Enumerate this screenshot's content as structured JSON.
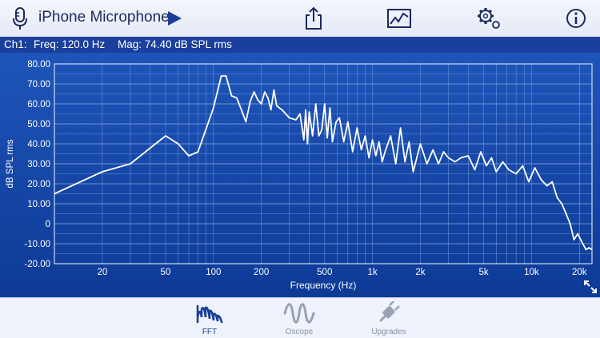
{
  "header": {
    "title": "iPhone Microphone",
    "icons": [
      "microphone-icon",
      "play-icon",
      "share-icon",
      "graph-icon",
      "settings-icon",
      "info-icon"
    ]
  },
  "readout": {
    "channel": "Ch1:",
    "freq": "Freq: 120.0 Hz",
    "mag": "Mag: 74.40 dB SPL rms"
  },
  "tabs": [
    {
      "label": "FFT",
      "active": true
    },
    {
      "label": "Oscope",
      "active": false
    },
    {
      "label": "Upgrades",
      "active": false
    }
  ],
  "colors": {
    "plot_bg": "#1a4db0",
    "grid": "#7fa6e4",
    "trace": "#ffffff",
    "active_tab": "#1b3f99"
  },
  "chart_data": {
    "type": "line",
    "xlabel": "Frequency (Hz)",
    "ylabel": "dB SPL rms",
    "xscale": "log",
    "xlim": [
      10,
      24000
    ],
    "ylim": [
      -20,
      80
    ],
    "yticks": [
      {
        "v": 80,
        "t": "80.00"
      },
      {
        "v": 70,
        "t": "70.00"
      },
      {
        "v": 60,
        "t": "60.00"
      },
      {
        "v": 50,
        "t": "50.00"
      },
      {
        "v": 40,
        "t": "40.00"
      },
      {
        "v": 30,
        "t": "30.00"
      },
      {
        "v": 20,
        "t": "20.00"
      },
      {
        "v": 10,
        "t": "10.00"
      },
      {
        "v": 0,
        "t": "0"
      },
      {
        "v": -10,
        "t": "-10.00"
      },
      {
        "v": -20,
        "t": "-20.00"
      }
    ],
    "xticks": [
      {
        "v": 20,
        "t": "20"
      },
      {
        "v": 50,
        "t": "50"
      },
      {
        "v": 100,
        "t": "100"
      },
      {
        "v": 200,
        "t": "200"
      },
      {
        "v": 500,
        "t": "500"
      },
      {
        "v": 1000,
        "t": "1k"
      },
      {
        "v": 2000,
        "t": "2k"
      },
      {
        "v": 5000,
        "t": "5k"
      },
      {
        "v": 10000,
        "t": "10k"
      },
      {
        "v": 20000,
        "t": "20k"
      }
    ],
    "grid": true,
    "series": [
      {
        "x": [
          10,
          20,
          30,
          50,
          60,
          70,
          80,
          100,
          112,
          120,
          130,
          140,
          150,
          160,
          170,
          180,
          190,
          200,
          210,
          220,
          230,
          240,
          250,
          270,
          300,
          330,
          350,
          370,
          380,
          390,
          400,
          420,
          440,
          460,
          480,
          500,
          520,
          540,
          560,
          590,
          620,
          660,
          700,
          750,
          800,
          850,
          900,
          950,
          1000,
          1050,
          1100,
          1150,
          1200,
          1300,
          1400,
          1500,
          1600,
          1700,
          1800,
          1900,
          2000,
          2200,
          2400,
          2600,
          2800,
          3000,
          3300,
          3600,
          4000,
          4400,
          4800,
          5200,
          5600,
          6000,
          6600,
          7200,
          8000,
          8800,
          9600,
          10500,
          11500,
          12500,
          13500,
          14500,
          15500,
          16500,
          17500,
          18500,
          19500,
          21000,
          22000,
          23000,
          24000
        ],
        "y": [
          15,
          26,
          30,
          44,
          40,
          34,
          36,
          58,
          74,
          74,
          64,
          63,
          57,
          51,
          61,
          66,
          62,
          60,
          66,
          63,
          57,
          67,
          59,
          57,
          53,
          52,
          55,
          42,
          57,
          40,
          56,
          44,
          60,
          44,
          47,
          60,
          43,
          58,
          41,
          51,
          53,
          41,
          51,
          36,
          48,
          37,
          44,
          33,
          42,
          34,
          41,
          31,
          36,
          44,
          30,
          48,
          31,
          41,
          26,
          33,
          40,
          30,
          37,
          30,
          36,
          33,
          31,
          33,
          34,
          27,
          36,
          29,
          33,
          26,
          31,
          27,
          25,
          29,
          21,
          28,
          22,
          19,
          21,
          13,
          10,
          5,
          0,
          -8,
          -5,
          -10,
          -13,
          -12,
          -13
        ]
      }
    ]
  }
}
